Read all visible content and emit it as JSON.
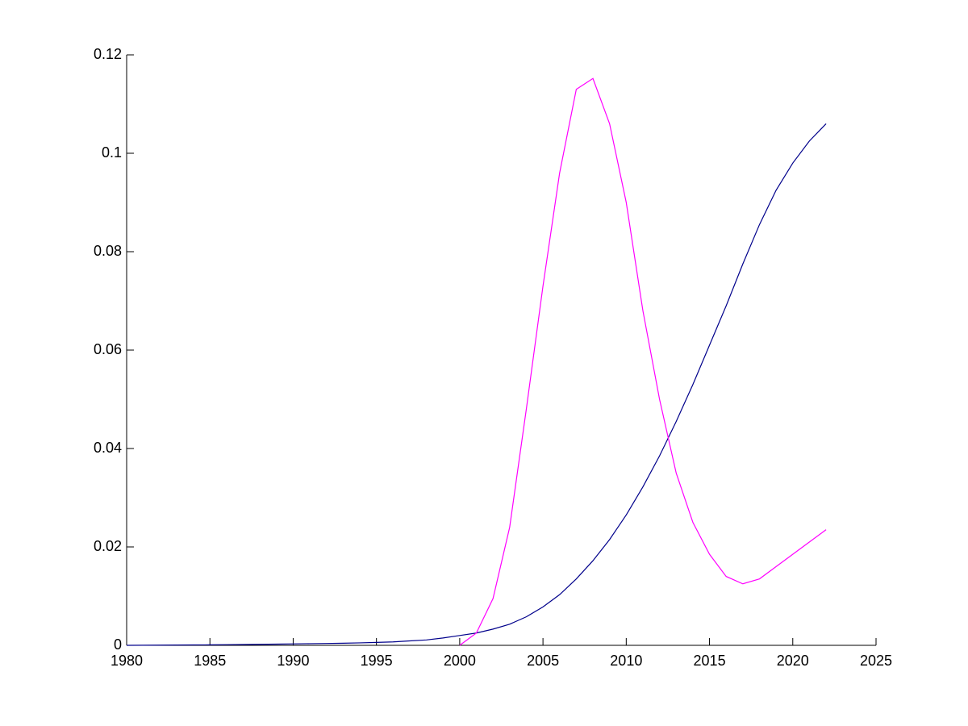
{
  "chart_data": {
    "type": "line",
    "x": [
      1980,
      1981,
      1982,
      1983,
      1984,
      1985,
      1986,
      1987,
      1988,
      1989,
      1990,
      1991,
      1992,
      1993,
      1994,
      1995,
      1996,
      1997,
      1998,
      1999,
      2000,
      2001,
      2002,
      2003,
      2004,
      2005,
      2006,
      2007,
      2008,
      2009,
      2010,
      2011,
      2012,
      2013,
      2014,
      2015,
      2016,
      2017,
      2018,
      2019,
      2020,
      2021,
      2022
    ],
    "series": [
      {
        "color": "#00008b",
        "values": [
          0,
          2e-05,
          4e-05,
          6e-05,
          8e-05,
          0.0001,
          0.00013,
          0.00016,
          0.0002,
          0.00025,
          0.0003,
          0.00034,
          0.00038,
          0.00043,
          0.0005,
          0.0006,
          0.0007,
          0.0009,
          0.0011,
          0.0015,
          0.002,
          0.0025,
          0.0033,
          0.0043,
          0.0058,
          0.0078,
          0.0103,
          0.0135,
          0.0172,
          0.0215,
          0.0265,
          0.0322,
          0.0385,
          0.0455,
          0.053,
          0.061,
          0.069,
          0.0775,
          0.0855,
          0.0925,
          0.098,
          0.1025,
          0.106
        ]
      },
      {
        "color": "#ff00ff",
        "values": [
          null,
          null,
          null,
          null,
          null,
          null,
          null,
          null,
          null,
          null,
          null,
          null,
          null,
          null,
          null,
          null,
          null,
          null,
          null,
          null,
          0,
          0.0025,
          0.0095,
          0.024,
          0.048,
          0.073,
          0.096,
          0.113,
          0.1152,
          0.106,
          0.09,
          0.068,
          0.05,
          0.035,
          0.025,
          0.0185,
          0.014,
          0.0125,
          0.0135,
          0.016,
          0.0185,
          0.021,
          0.0235
        ]
      }
    ],
    "xlim": [
      1980,
      2025
    ],
    "xticks": [
      1980,
      1985,
      1990,
      1995,
      2000,
      2005,
      2010,
      2015,
      2020,
      2025
    ],
    "ylim": [
      0,
      0.12
    ],
    "yticks": [
      0,
      0.02,
      0.04,
      0.06,
      0.08,
      0.1,
      0.12
    ]
  }
}
